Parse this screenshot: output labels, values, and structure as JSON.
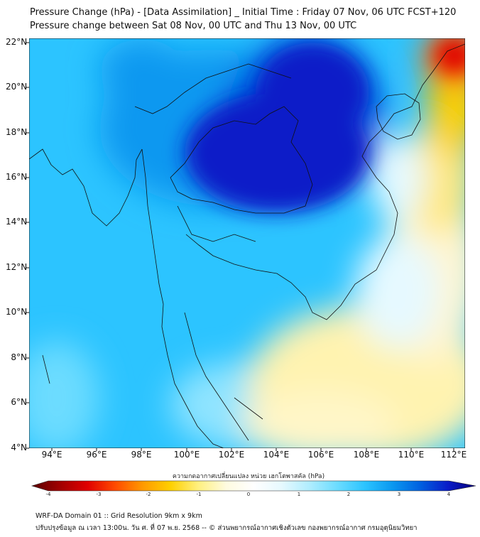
{
  "title_line1": "Pressure Change (hPa) - [Data Assimilation] _ Initial Time : Friday 07 Nov, 06 UTC FCST+120",
  "title_line2": "Pressure change between Sat 08 Nov, 00 UTC and Thu 13 Nov, 00 UTC",
  "lat_labels": [
    "22°N",
    "20°N",
    "18°N",
    "16°N",
    "14°N",
    "12°N",
    "10°N",
    "8°N",
    "6°N",
    "4°N"
  ],
  "lon_labels": [
    "94°E",
    "96°E",
    "98°E",
    "100°E",
    "102°E",
    "104°E",
    "106°E",
    "108°E",
    "110°E",
    "112°E"
  ],
  "colorbar": {
    "title": "ความกดอากาศเปลี่ยนแปลง หน่วย เฮกโตพาสคัล (hPa)",
    "ticks": [
      "-4",
      "-3",
      "-2",
      "-1",
      "0",
      "1",
      "2",
      "3",
      "4"
    ],
    "colors": [
      "#5a0000",
      "#a00000",
      "#e00000",
      "#ff4a00",
      "#ff9a00",
      "#ffd000",
      "#fff080",
      "#fffbe0",
      "#ffffff",
      "#e6f9ff",
      "#b0edff",
      "#6cdcff",
      "#2cc4ff",
      "#0a98f0",
      "#0060e0",
      "#0a1cc8",
      "#05007a"
    ]
  },
  "footer_line1": "WRF-DA Domain 01 :: Grid Resolution 9km x 9km",
  "footer_line2": "ปรับปรุงข้อมูล ณ เวลา 13:00น. วัน ศ. ที่ 07 พ.ย. 2568 -- © ส่วนพยากรณ์อากาศเชิงตัวเลข กองพยากรณ์อากาศ กรมอุตุนิยมวิทยา"
}
